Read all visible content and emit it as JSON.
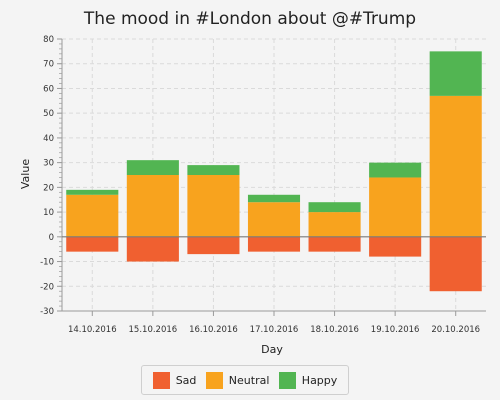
{
  "colors": {
    "sad": "#f06030",
    "neutral": "#f8a31e",
    "happy": "#52b552",
    "grid": "#dadada",
    "zero_line": "#7a7a7a",
    "axis": "#9a9a9a",
    "background": "#f4f4f4"
  },
  "chart_data": {
    "type": "bar",
    "stacked": true,
    "title": "The mood in #London about @#Trump",
    "xlabel": "Day",
    "ylabel": "Value",
    "ylim": [
      -30,
      80
    ],
    "ytick_step": 10,
    "grid": true,
    "legend_position": "bottom",
    "categories": [
      "14.10.2016",
      "15.10.2016",
      "16.10.2016",
      "17.10.2016",
      "18.10.2016",
      "19.10.2016",
      "20.10.2016"
    ],
    "series": [
      {
        "name": "Sad",
        "color_key": "sad",
        "values": [
          -6,
          -10,
          -7,
          -6,
          -6,
          -8,
          -22
        ]
      },
      {
        "name": "Neutral",
        "color_key": "neutral",
        "values": [
          17,
          25,
          25,
          14,
          10,
          24,
          57
        ]
      },
      {
        "name": "Happy",
        "color_key": "happy",
        "values": [
          2,
          6,
          4,
          3,
          4,
          6,
          18
        ]
      }
    ]
  }
}
